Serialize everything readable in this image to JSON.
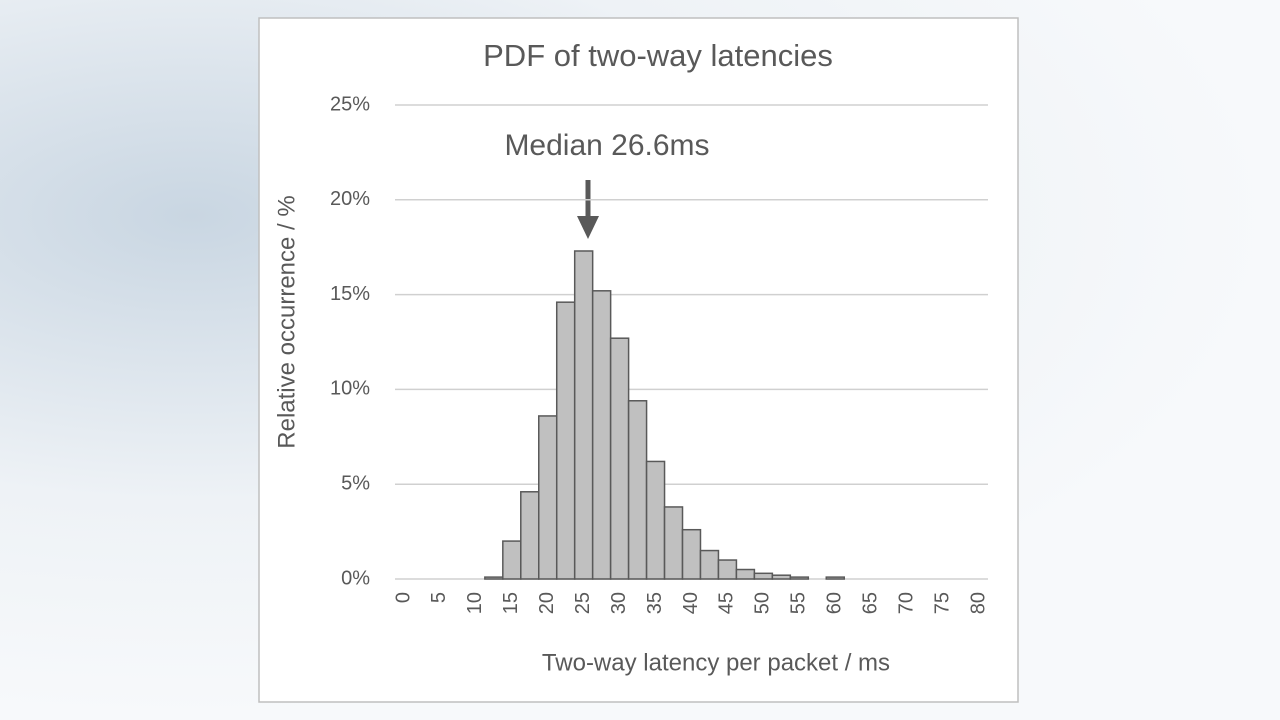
{
  "chart_data": {
    "type": "bar",
    "title": "PDF of two-way latencies",
    "x_label": "Two-way latency per packet / ms",
    "y_label": "Relative occurrence / %",
    "annotation": "Median 26.6ms",
    "categories": [
      "0",
      null,
      "5",
      null,
      "10",
      null,
      "15",
      null,
      "20",
      null,
      "25",
      null,
      "30",
      null,
      "35",
      null,
      "40",
      null,
      "45",
      null,
      "50",
      null,
      "55",
      null,
      "60",
      null,
      "65",
      null,
      "70",
      null,
      "75",
      null,
      "80"
    ],
    "values": [
      0,
      0,
      0,
      0,
      0,
      0.1,
      2.0,
      4.6,
      8.6,
      14.6,
      17.3,
      15.2,
      12.7,
      9.4,
      6.2,
      3.8,
      2.6,
      1.5,
      1.0,
      0.5,
      0.3,
      0.2,
      0.1,
      0,
      0.1,
      0,
      0,
      0,
      0,
      0,
      0,
      0,
      0
    ],
    "color": "#c0c0c0",
    "ylim": [
      0,
      25
    ],
    "yticks": [
      {
        "value": 0,
        "label": "0%"
      },
      {
        "value": 5,
        "label": "5%"
      },
      {
        "value": 10,
        "label": "10%"
      },
      {
        "value": 15,
        "label": "15%"
      },
      {
        "value": 20,
        "label": "20%"
      },
      {
        "value": 25,
        "label": "25%"
      }
    ],
    "grid": true
  }
}
